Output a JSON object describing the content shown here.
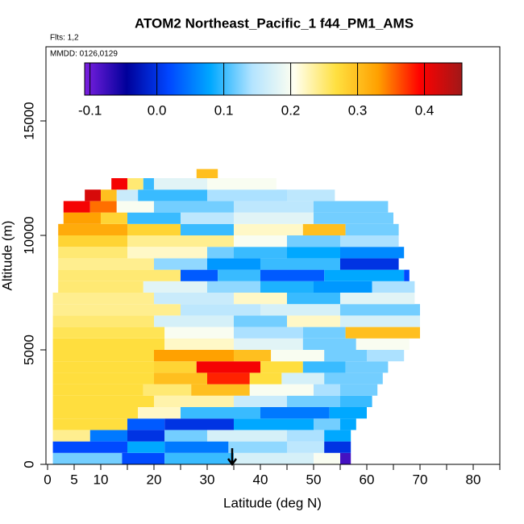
{
  "chart_data": {
    "type": "heatmap",
    "title": "ATOM2 Northeast_Pacific_1 f44_PM1_AMS",
    "flights": "Flts: 1,2",
    "dates": "MMDD: 0126,0129",
    "xlabel": "Latitude (deg N)",
    "ylabel": "Altitude (m)",
    "xlim": [
      -0.3,
      85
    ],
    "ylim": [
      0,
      18240
    ],
    "xticks": [
      0,
      5,
      10,
      20,
      30,
      40,
      50,
      60,
      70,
      80
    ],
    "xminorticks": [
      15,
      25,
      35,
      45,
      55,
      65,
      75,
      85
    ],
    "yticks": [
      0,
      5000,
      10000,
      15000
    ],
    "clim": [
      -0.108,
      0.456
    ],
    "cticks": [
      -0.1,
      {
        "value": 0,
        "label": "0.0"
      },
      0.1,
      0.2,
      0.3,
      0.4
    ],
    "colormap": [
      "#7b1fe0",
      "#00009a",
      "#0046ff",
      "#00a8ff",
      "#b4e4ff",
      "#fffff0",
      "#ffe040",
      "#ffa000",
      "#ff0000",
      "#a01818"
    ],
    "rows": [
      {
        "alt": [
          0,
          500
        ],
        "cells": [
          [
            1,
            14,
            0.12
          ],
          [
            14,
            22,
            0.02
          ],
          [
            22,
            35,
            0.1
          ],
          [
            35,
            50,
            0.17
          ],
          [
            50,
            55,
            0.2
          ],
          [
            55,
            57,
            -0.08
          ]
        ]
      },
      {
        "alt": [
          500,
          1000
        ],
        "cells": [
          [
            1,
            15,
            0.02
          ],
          [
            15,
            22,
            0.08
          ],
          [
            22,
            34,
            0.05
          ],
          [
            34,
            45,
            0.13
          ],
          [
            45,
            52,
            0.15
          ],
          [
            52,
            57,
            0.0
          ]
        ]
      },
      {
        "alt": [
          1000,
          1500
        ],
        "cells": [
          [
            1,
            8,
            0.24
          ],
          [
            8,
            15,
            0.05
          ],
          [
            15,
            22,
            0.0
          ],
          [
            22,
            30,
            0.12
          ],
          [
            30,
            45,
            0.17
          ],
          [
            45,
            52,
            0.14
          ],
          [
            52,
            57,
            0.08
          ]
        ]
      },
      {
        "alt": [
          1500,
          2000
        ],
        "cells": [
          [
            1,
            15,
            0.27
          ],
          [
            15,
            22,
            0.03
          ],
          [
            22,
            35,
            0.0
          ],
          [
            35,
            50,
            0.08
          ],
          [
            50,
            55,
            0.12
          ],
          [
            55,
            58,
            0.08
          ]
        ]
      },
      {
        "alt": [
          2000,
          2500
        ],
        "cells": [
          [
            1,
            17,
            0.27
          ],
          [
            17,
            25,
            0.22
          ],
          [
            25,
            40,
            0.1
          ],
          [
            40,
            53,
            0.05
          ],
          [
            53,
            60,
            0.08
          ]
        ]
      },
      {
        "alt": [
          2500,
          3000
        ],
        "cells": [
          [
            1,
            20,
            0.27
          ],
          [
            20,
            35,
            0.23
          ],
          [
            35,
            45,
            0.16
          ],
          [
            45,
            55,
            0.12
          ],
          [
            55,
            61,
            0.1
          ]
        ]
      },
      {
        "alt": [
          3000,
          3500
        ],
        "cells": [
          [
            1,
            18,
            0.27
          ],
          [
            18,
            27,
            0.25
          ],
          [
            27,
            38,
            0.3
          ],
          [
            38,
            50,
            0.2
          ],
          [
            50,
            55,
            0.14
          ],
          [
            55,
            62,
            0.12
          ]
        ]
      },
      {
        "alt": [
          3500,
          4000
        ],
        "cells": [
          [
            1,
            20,
            0.27
          ],
          [
            20,
            30,
            0.3
          ],
          [
            30,
            38,
            0.38
          ],
          [
            38,
            44,
            0.27
          ],
          [
            44,
            52,
            0.17
          ],
          [
            52,
            63,
            0.12
          ]
        ]
      },
      {
        "alt": [
          4000,
          4500
        ],
        "cells": [
          [
            1,
            20,
            0.27
          ],
          [
            20,
            28,
            0.28
          ],
          [
            28,
            40,
            0.4
          ],
          [
            40,
            48,
            0.27
          ],
          [
            48,
            56,
            0.1
          ],
          [
            56,
            64,
            0.12
          ]
        ]
      },
      {
        "alt": [
          4500,
          5000
        ],
        "cells": [
          [
            1,
            20,
            0.27
          ],
          [
            20,
            35,
            0.33
          ],
          [
            35,
            42,
            0.3
          ],
          [
            42,
            52,
            0.2
          ],
          [
            52,
            60,
            0.12
          ],
          [
            60,
            67,
            0.14
          ]
        ]
      },
      {
        "alt": [
          5000,
          5500
        ],
        "cells": [
          [
            1,
            22,
            0.27
          ],
          [
            22,
            35,
            0.22
          ],
          [
            35,
            48,
            0.18
          ],
          [
            48,
            58,
            0.12
          ],
          [
            58,
            68,
            0.2
          ]
        ]
      },
      {
        "alt": [
          5500,
          6000
        ],
        "cells": [
          [
            1,
            22,
            0.26
          ],
          [
            22,
            35,
            0.2
          ],
          [
            35,
            48,
            0.14
          ],
          [
            48,
            56,
            0.12
          ],
          [
            56,
            70,
            0.3
          ]
        ]
      },
      {
        "alt": [
          6000,
          6500
        ],
        "cells": [
          [
            1,
            20,
            0.25
          ],
          [
            20,
            35,
            0.17
          ],
          [
            35,
            45,
            0.12
          ],
          [
            45,
            55,
            0.22
          ],
          [
            55,
            70,
            0.17
          ]
        ]
      },
      {
        "alt": [
          6500,
          7000
        ],
        "cells": [
          [
            1,
            25,
            0.24
          ],
          [
            25,
            40,
            0.15
          ],
          [
            40,
            55,
            0.17
          ],
          [
            55,
            70,
            0.12
          ]
        ]
      },
      {
        "alt": [
          7000,
          7500
        ],
        "cells": [
          [
            1,
            20,
            0.24
          ],
          [
            20,
            35,
            0.16
          ],
          [
            35,
            45,
            0.22
          ],
          [
            45,
            55,
            0.1
          ],
          [
            55,
            69,
            0.18
          ]
        ]
      },
      {
        "alt": [
          7500,
          8000
        ],
        "cells": [
          [
            2,
            18,
            0.25
          ],
          [
            18,
            30,
            0.18
          ],
          [
            30,
            40,
            0.13
          ],
          [
            40,
            50,
            0.09
          ],
          [
            50,
            61,
            0.07
          ],
          [
            61,
            69,
            0.14
          ]
        ]
      },
      {
        "alt": [
          8000,
          8500
        ],
        "cells": [
          [
            2,
            25,
            0.25
          ],
          [
            25,
            32,
            0.03
          ],
          [
            32,
            40,
            0.1
          ],
          [
            40,
            52,
            0.03
          ],
          [
            52,
            67,
            0.08
          ],
          [
            67,
            68,
            0.02
          ]
        ]
      },
      {
        "alt": [
          8500,
          9000
        ],
        "cells": [
          [
            2,
            20,
            0.24
          ],
          [
            20,
            30,
            0.13
          ],
          [
            30,
            40,
            0.07
          ],
          [
            40,
            55,
            0.1
          ],
          [
            55,
            66,
            0.0
          ]
        ]
      },
      {
        "alt": [
          9000,
          9500
        ],
        "cells": [
          [
            2,
            15,
            0.25
          ],
          [
            15,
            30,
            0.22
          ],
          [
            30,
            35,
            0.12
          ],
          [
            35,
            45,
            0.1
          ],
          [
            45,
            55,
            0.08
          ],
          [
            55,
            67,
            0.06
          ]
        ]
      },
      {
        "alt": [
          9500,
          10000
        ],
        "cells": [
          [
            2,
            15,
            0.28
          ],
          [
            15,
            35,
            0.24
          ],
          [
            35,
            45,
            0.2
          ],
          [
            45,
            55,
            0.12
          ],
          [
            55,
            66,
            0.14
          ]
        ]
      },
      {
        "alt": [
          10000,
          10500
        ],
        "cells": [
          [
            2,
            15,
            0.32
          ],
          [
            15,
            25,
            0.28
          ],
          [
            25,
            35,
            0.1
          ],
          [
            35,
            48,
            0.22
          ],
          [
            48,
            56,
            0.3
          ],
          [
            56,
            66,
            0.12
          ]
        ]
      },
      {
        "alt": [
          10500,
          11000
        ],
        "cells": [
          [
            3,
            10,
            0.33
          ],
          [
            10,
            15,
            0.28
          ],
          [
            15,
            25,
            0.1
          ],
          [
            25,
            35,
            0.15
          ],
          [
            35,
            50,
            0.18
          ],
          [
            50,
            65,
            0.12
          ]
        ]
      },
      {
        "alt": [
          11000,
          11500
        ],
        "cells": [
          [
            3,
            8,
            0.4
          ],
          [
            8,
            13,
            0.35
          ],
          [
            13,
            20,
            0.2
          ],
          [
            20,
            35,
            0.12
          ],
          [
            35,
            50,
            0.15
          ],
          [
            50,
            64,
            0.12
          ]
        ]
      },
      {
        "alt": [
          11500,
          12000
        ],
        "cells": [
          [
            7,
            10,
            0.42
          ],
          [
            10,
            13,
            0.3
          ],
          [
            13,
            17,
            0.16
          ],
          [
            17,
            30,
            0.1
          ],
          [
            30,
            45,
            0.14
          ],
          [
            45,
            54,
            0.15
          ]
        ]
      },
      {
        "alt": [
          12000,
          12500
        ],
        "cells": [
          [
            12,
            15,
            0.4
          ],
          [
            15,
            18,
            0.25
          ],
          [
            18,
            20,
            0.1
          ],
          [
            20,
            30,
            0.18
          ],
          [
            30,
            43,
            0.2
          ]
        ]
      },
      {
        "alt": [
          12500,
          12900
        ],
        "cells": [
          [
            28,
            32,
            0.3
          ]
        ]
      }
    ]
  }
}
